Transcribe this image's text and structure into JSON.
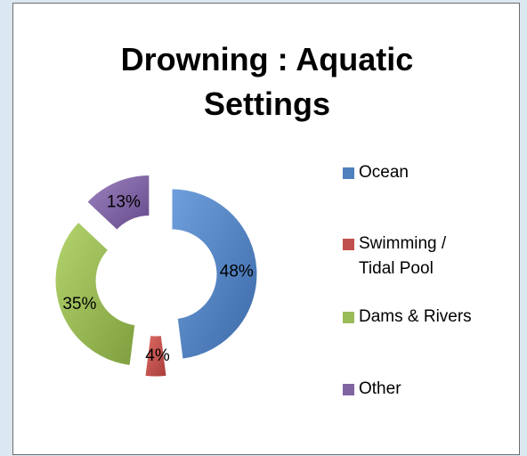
{
  "chart_data": {
    "type": "pie",
    "variant": "exploded-doughnut",
    "title": "Drowning : Aquatic Settings",
    "title_lines": [
      "Drowning : Aquatic",
      "Settings"
    ],
    "categories": [
      "Ocean",
      "Swimming / Tidal Pool",
      "Dams & Rivers",
      "Other"
    ],
    "values": [
      48,
      4,
      35,
      13
    ],
    "data_labels": [
      "48%",
      "4%",
      "35%",
      "13%"
    ],
    "legend_lines": [
      [
        "Ocean"
      ],
      [
        "Swimming /",
        "Tidal Pool"
      ],
      [
        "Dams & Rivers"
      ],
      [
        "Other"
      ]
    ],
    "colors": [
      "#4f81bd",
      "#c0504d",
      "#9bbb59",
      "#8064a2"
    ],
    "legend_position": "right"
  }
}
